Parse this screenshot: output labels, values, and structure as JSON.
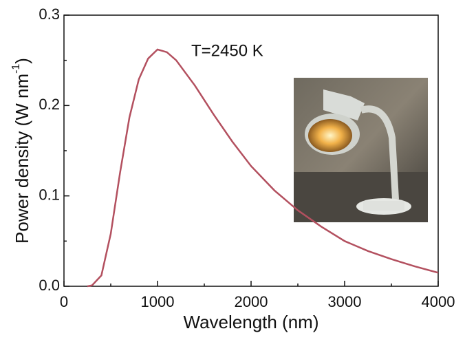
{
  "chart_data": {
    "type": "line",
    "xlabel": "Wavelength (nm)",
    "ylabel": "Power density  (W nm",
    "ylabel_sup": "-1",
    "ylabel_end": ")",
    "annotation": "T=2450 K",
    "x": [
      250,
      300,
      400,
      500,
      600,
      700,
      800,
      900,
      1000,
      1100,
      1200,
      1400,
      1600,
      1800,
      2000,
      2250,
      2500,
      2750,
      3000,
      3250,
      3500,
      3750,
      4000
    ],
    "series": [
      {
        "color": "#b3505f",
        "values": [
          0,
          0.001,
          0.012,
          0.058,
          0.126,
          0.187,
          0.229,
          0.252,
          0.262,
          0.259,
          0.25,
          0.222,
          0.19,
          0.16,
          0.133,
          0.106,
          0.084,
          0.066,
          0.05,
          0.039,
          0.03,
          0.022,
          0.015
        ]
      }
    ],
    "xlim": [
      0,
      4000
    ],
    "xticks": [
      0,
      1000,
      2000,
      3000,
      4000
    ],
    "xminor": [
      500,
      1500,
      2500,
      3500
    ],
    "ylim": [
      0,
      0.3
    ],
    "yticks": [
      {
        "value": 0,
        "label": "0.0"
      },
      0.1,
      0.2,
      0.3
    ],
    "yminor": [
      0.05,
      0.15,
      0.25
    ]
  }
}
